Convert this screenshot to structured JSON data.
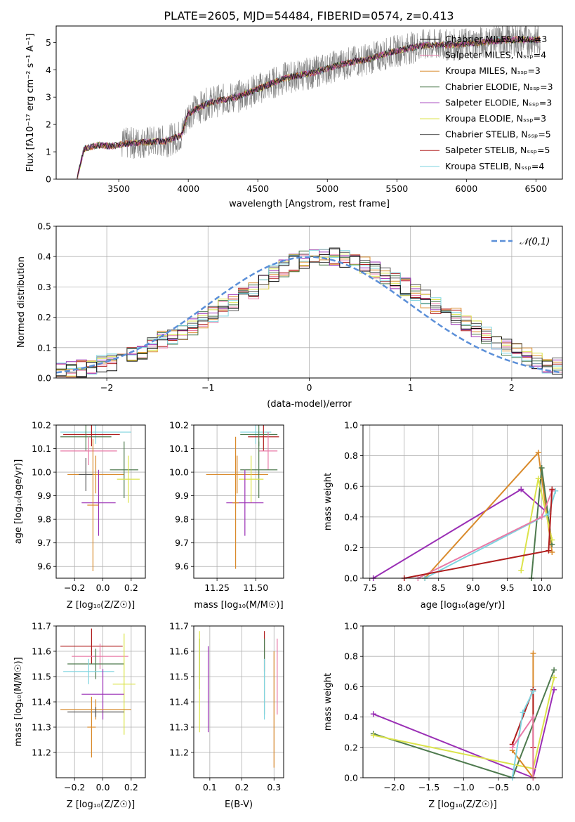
{
  "figure_title": "PLATE=2605, MJD=54484, FIBERID=0574, z=0.413",
  "chart_data": [
    {
      "id": "spectrum",
      "type": "line",
      "xlabel": "wavelength [Angstrom, rest frame]",
      "ylabel": "Flux [f_λ 10^{-17} erg cm^{-2} s^{-1} A^{-1}]",
      "xlim": [
        3050,
        6690
      ],
      "ylim": [
        0,
        5.6
      ],
      "xticks": [
        3500,
        4000,
        4500,
        5000,
        5500,
        6000,
        6500
      ],
      "yticks": [
        0,
        1,
        2,
        3,
        4,
        5
      ],
      "grid": false,
      "legend_position": "top-right",
      "series": [
        {
          "name": "Chabrier MILES, N_SSP=3",
          "color": "#0a0a0a"
        },
        {
          "name": "Salpeter MILES, N_SSP=4",
          "color": "#e87aa7"
        },
        {
          "name": "Kroupa MILES, N_SSP=3",
          "color": "#d98a2b"
        },
        {
          "name": "Chabrier ELODIE, N_SSP=3",
          "color": "#4e7a4e"
        },
        {
          "name": "Salpeter ELODIE, N_SSP=3",
          "color": "#9a2fb5"
        },
        {
          "name": "Kroupa ELODIE, N_SSP=3",
          "color": "#dbe34a"
        },
        {
          "name": "Chabrier STELIB, N_SSP=5",
          "color": "#555555"
        },
        {
          "name": "Salpeter STELIB, N_SSP=5",
          "color": "#b01e1e"
        },
        {
          "name": "Kroupa STELIB, N_SSP=4",
          "color": "#7fd4df"
        }
      ],
      "spectrum_envelope": {
        "x": [
          3200,
          3250,
          3350,
          3450,
          3550,
          3700,
          3850,
          3950,
          4000,
          4150,
          4350,
          4500,
          4700,
          4900,
          5100,
          5300,
          5500,
          5700,
          5900,
          6100,
          6300,
          6500
        ],
        "y": [
          0.0,
          1.1,
          1.25,
          1.2,
          1.3,
          1.35,
          1.4,
          1.6,
          2.4,
          2.8,
          3.0,
          3.3,
          3.7,
          3.9,
          4.2,
          4.4,
          4.7,
          4.9,
          4.9,
          5.0,
          5.1,
          5.1
        ]
      }
    },
    {
      "id": "residuals",
      "type": "histogram",
      "xlabel": "(data-model)/error",
      "ylabel": "Normed distribution",
      "xlim": [
        -2.5,
        2.5
      ],
      "ylim": [
        0,
        0.5
      ],
      "xticks": [
        -2,
        -1,
        0,
        1,
        2
      ],
      "yticks": [
        0.0,
        0.1,
        0.2,
        0.3,
        0.4,
        0.5
      ],
      "grid": true,
      "legend": "𝒩(0,1)",
      "legend_position": "top-right",
      "bin_width": 0.1,
      "bins_start": -2.5,
      "hist_values": [
        0.02,
        0.025,
        0.03,
        0.04,
        0.045,
        0.05,
        0.06,
        0.075,
        0.09,
        0.11,
        0.125,
        0.14,
        0.15,
        0.165,
        0.19,
        0.21,
        0.23,
        0.25,
        0.27,
        0.29,
        0.32,
        0.345,
        0.36,
        0.38,
        0.39,
        0.4,
        0.395,
        0.4,
        0.39,
        0.385,
        0.37,
        0.355,
        0.34,
        0.32,
        0.3,
        0.28,
        0.26,
        0.24,
        0.22,
        0.2,
        0.18,
        0.16,
        0.14,
        0.12,
        0.1,
        0.085,
        0.07,
        0.055,
        0.045,
        0.04
      ],
      "normal_curve": "N(0,1)"
    },
    {
      "id": "z-age",
      "type": "scatter",
      "xlabel": "Z [log10(Z/Z☉)]",
      "ylabel": "age [log10(age/yr)]",
      "xlim": [
        -0.33,
        0.3
      ],
      "ylim": [
        9.55,
        10.2
      ],
      "xticks": [
        -0.2,
        0.0,
        0.2
      ],
      "xticklabels": [
        "−0.2",
        "0.0",
        "0.2"
      ],
      "yticks": [
        9.6,
        9.7,
        9.8,
        9.9,
        10.0,
        10.1,
        10.2
      ],
      "grid": true,
      "points": [
        {
          "x": -0.05,
          "y": 10.17,
          "xerr": 0.25,
          "yerr": 0.05,
          "c": "#7fd4df"
        },
        {
          "x": -0.08,
          "y": 10.16,
          "xerr": 0.2,
          "yerr": 0.05,
          "c": "#b01e1e"
        },
        {
          "x": -0.12,
          "y": 10.15,
          "xerr": 0.18,
          "yerr": 0.06,
          "c": "#4e7a4e"
        },
        {
          "x": -0.1,
          "y": 10.09,
          "xerr": 0.2,
          "yerr": 0.06,
          "c": "#e87aa7"
        },
        {
          "x": -0.05,
          "y": 9.99,
          "xerr": 0.2,
          "yerr": 0.08,
          "c": "#d98a2b"
        },
        {
          "x": 0.15,
          "y": 10.01,
          "xerr": 0.1,
          "yerr": 0.12,
          "c": "#4e7a4e"
        },
        {
          "x": 0.18,
          "y": 9.97,
          "xerr": 0.08,
          "yerr": 0.1,
          "c": "#dbe34a"
        },
        {
          "x": -0.03,
          "y": 9.87,
          "xerr": 0.12,
          "yerr": 0.14,
          "c": "#9a2fb5"
        },
        {
          "x": -0.12,
          "y": 9.99,
          "xerr": 0.05,
          "yerr": 0.07,
          "c": "#555555"
        },
        {
          "x": -0.07,
          "y": 9.86,
          "xerr": 0.04,
          "yerr": 0.28,
          "c": "#d98a2b"
        }
      ]
    },
    {
      "id": "mass-age",
      "type": "scatter",
      "xlabel": "mass [log10(M/M☉)]",
      "ylabel": "",
      "xlim": [
        11.1,
        11.68
      ],
      "ylim": [
        9.55,
        10.2
      ],
      "xticks": [
        11.25,
        11.5
      ],
      "xticklabels": [
        "11.25",
        "11.50"
      ],
      "yticks": [
        9.6,
        9.7,
        9.8,
        9.9,
        10.0,
        10.1,
        10.2
      ],
      "grid": true,
      "points": [
        {
          "x": 11.5,
          "y": 10.17,
          "xerr": 0.1,
          "yerr": 0.05,
          "c": "#7fd4df"
        },
        {
          "x": 11.55,
          "y": 10.15,
          "xerr": 0.1,
          "yerr": 0.06,
          "c": "#b01e1e"
        },
        {
          "x": 11.52,
          "y": 10.16,
          "xerr": 0.12,
          "yerr": 0.05,
          "c": "#4e7a4e"
        },
        {
          "x": 11.58,
          "y": 10.09,
          "xerr": 0.06,
          "yerr": 0.08,
          "c": "#e87aa7"
        },
        {
          "x": 11.38,
          "y": 9.99,
          "xerr": 0.2,
          "yerr": 0.08,
          "c": "#d98a2b"
        },
        {
          "x": 11.52,
          "y": 10.01,
          "xerr": 0.12,
          "yerr": 0.12,
          "c": "#4e7a4e"
        },
        {
          "x": 11.47,
          "y": 9.97,
          "xerr": 0.08,
          "yerr": 0.1,
          "c": "#dbe34a"
        },
        {
          "x": 11.43,
          "y": 9.87,
          "xerr": 0.12,
          "yerr": 0.14,
          "c": "#9a2fb5"
        },
        {
          "x": 11.37,
          "y": 9.87,
          "xerr": 0.02,
          "yerr": 0.28,
          "c": "#d98a2b"
        }
      ]
    },
    {
      "id": "age-weight",
      "type": "line",
      "xlabel": "age [log10(age/yr)]",
      "ylabel": "mass weight",
      "xlim": [
        7.4,
        10.3
      ],
      "ylim": [
        0,
        1
      ],
      "xticks": [
        7.5,
        8.0,
        8.5,
        9.0,
        9.5,
        10.0
      ],
      "yticks": [
        0.0,
        0.2,
        0.4,
        0.6,
        0.8,
        1.0
      ],
      "grid": true,
      "series": [
        {
          "c": "#9a2fb5",
          "x": [
            7.55,
            9.7,
            10.1
          ],
          "y": [
            0.0,
            0.58,
            0.42
          ]
        },
        {
          "c": "#d98a2b",
          "x": [
            8.3,
            9.95,
            10.15
          ],
          "y": [
            0.0,
            0.82,
            0.17
          ]
        },
        {
          "c": "#4e7a4e",
          "x": [
            9.85,
            10.0,
            10.15
          ],
          "y": [
            0.0,
            0.72,
            0.22
          ]
        },
        {
          "c": "#dbe34a",
          "x": [
            9.7,
            9.95,
            10.15
          ],
          "y": [
            0.05,
            0.65,
            0.25
          ]
        },
        {
          "c": "#7fd4df",
          "x": [
            8.3,
            10.1,
            10.2
          ],
          "y": [
            0.0,
            0.42,
            0.57
          ]
        },
        {
          "c": "#e87aa7",
          "x": [
            8.2,
            10.0,
            10.15
          ],
          "y": [
            0.0,
            0.4,
            0.57
          ]
        },
        {
          "c": "#b01e1e",
          "x": [
            8.0,
            10.1,
            10.15
          ],
          "y": [
            0.0,
            0.18,
            0.58
          ]
        }
      ]
    },
    {
      "id": "z-mass",
      "type": "scatter",
      "xlabel": "Z [log10(Z/Z☉)]",
      "ylabel": "mass [log10(M/M☉)]",
      "xlim": [
        -0.33,
        0.3
      ],
      "ylim": [
        11.1,
        11.7
      ],
      "xticks": [
        -0.2,
        0.0,
        0.2
      ],
      "xticklabels": [
        "−0.2",
        "0.0",
        "0.2"
      ],
      "yticks": [
        11.2,
        11.3,
        11.4,
        11.5,
        11.6,
        11.7
      ],
      "grid": true,
      "points": [
        {
          "x": -0.08,
          "y": 11.62,
          "xerr": 0.22,
          "yerr": 0.07,
          "c": "#b01e1e"
        },
        {
          "x": -0.02,
          "y": 11.58,
          "xerr": 0.2,
          "yerr": 0.05,
          "c": "#e87aa7"
        },
        {
          "x": -0.05,
          "y": 11.55,
          "xerr": 0.2,
          "yerr": 0.06,
          "c": "#4e7a4e"
        },
        {
          "x": -0.1,
          "y": 11.52,
          "xerr": 0.18,
          "yerr": 0.05,
          "c": "#7fd4df"
        },
        {
          "x": 0.15,
          "y": 11.47,
          "xerr": 0.08,
          "yerr": 0.2,
          "c": "#dbe34a"
        },
        {
          "x": 0.0,
          "y": 11.43,
          "xerr": 0.15,
          "yerr": 0.1,
          "c": "#9a2fb5"
        },
        {
          "x": -0.05,
          "y": 11.37,
          "xerr": 0.25,
          "yerr": 0.04,
          "c": "#d98a2b"
        },
        {
          "x": -0.05,
          "y": 11.36,
          "xerr": 0.2,
          "yerr": 0.02,
          "c": "#555555"
        },
        {
          "x": -0.08,
          "y": 11.3,
          "xerr": 0.03,
          "yerr": 0.12,
          "c": "#d98a2b"
        }
      ]
    },
    {
      "id": "ebv-mass",
      "type": "scatter",
      "xlabel": "E(B-V)",
      "ylabel": "",
      "xlim": [
        0.05,
        0.33
      ],
      "ylim": [
        11.1,
        11.7
      ],
      "xticks": [
        0.1,
        0.2,
        0.3
      ],
      "yticks": [
        11.2,
        11.3,
        11.4,
        11.5,
        11.6,
        11.7
      ],
      "grid": true,
      "points": [
        {
          "x": 0.068,
          "y": 11.55,
          "xerr": 0.0,
          "yerr": 0.1,
          "c": "#4e7a4e"
        },
        {
          "x": 0.068,
          "y": 11.48,
          "xerr": 0.0,
          "yerr": 0.2,
          "c": "#dbe34a"
        },
        {
          "x": 0.095,
          "y": 11.45,
          "xerr": 0.0,
          "yerr": 0.17,
          "c": "#9a2fb5"
        },
        {
          "x": 0.27,
          "y": 11.6,
          "xerr": 0.0,
          "yerr": 0.08,
          "c": "#b01e1e"
        },
        {
          "x": 0.27,
          "y": 11.5,
          "xerr": 0.0,
          "yerr": 0.15,
          "c": "#4e7a4e"
        },
        {
          "x": 0.27,
          "y": 11.45,
          "xerr": 0.0,
          "yerr": 0.12,
          "c": "#7fd4df"
        },
        {
          "x": 0.3,
          "y": 11.37,
          "xerr": 0.0,
          "yerr": 0.23,
          "c": "#d98a2b"
        },
        {
          "x": 0.31,
          "y": 11.5,
          "xerr": 0.0,
          "yerr": 0.15,
          "c": "#e87aa7"
        }
      ]
    },
    {
      "id": "z-weight",
      "type": "line",
      "xlabel": "Z [log10(Z/Z☉)]",
      "ylabel": "mass weight",
      "xlim": [
        -2.45,
        0.42
      ],
      "ylim": [
        0,
        1
      ],
      "xticks": [
        -2.0,
        -1.5,
        -1.0,
        -0.5,
        0.0
      ],
      "xticklabels": [
        "−2.0",
        "−1.5",
        "−1.0",
        "−0.5",
        "0.0"
      ],
      "yticks": [
        0.0,
        0.2,
        0.4,
        0.6,
        0.8,
        1.0
      ],
      "grid": true,
      "series": [
        {
          "c": "#9a2fb5",
          "x": [
            -2.3,
            0.0,
            0.3
          ],
          "y": [
            0.42,
            0.0,
            0.58
          ]
        },
        {
          "c": "#4e7a4e",
          "x": [
            -2.3,
            -0.3,
            0.3
          ],
          "y": [
            0.29,
            0.0,
            0.71
          ]
        },
        {
          "c": "#dbe34a",
          "x": [
            -2.3,
            0.0,
            0.3
          ],
          "y": [
            0.28,
            0.06,
            0.66
          ]
        },
        {
          "c": "#d98a2b",
          "x": [
            -0.3,
            0.0,
            0.0
          ],
          "y": [
            0.18,
            0.0,
            0.82
          ]
        },
        {
          "c": "#b01e1e",
          "x": [
            -0.3,
            0.0,
            0.0
          ],
          "y": [
            0.22,
            0.58,
            0.2
          ]
        },
        {
          "c": "#7fd4df",
          "x": [
            -0.3,
            -0.15,
            0.0
          ],
          "y": [
            0.0,
            0.43,
            0.57
          ]
        },
        {
          "c": "#e87aa7",
          "x": [
            -0.3,
            0.0,
            0.0
          ],
          "y": [
            0.2,
            0.4,
            0.0
          ]
        }
      ]
    }
  ]
}
